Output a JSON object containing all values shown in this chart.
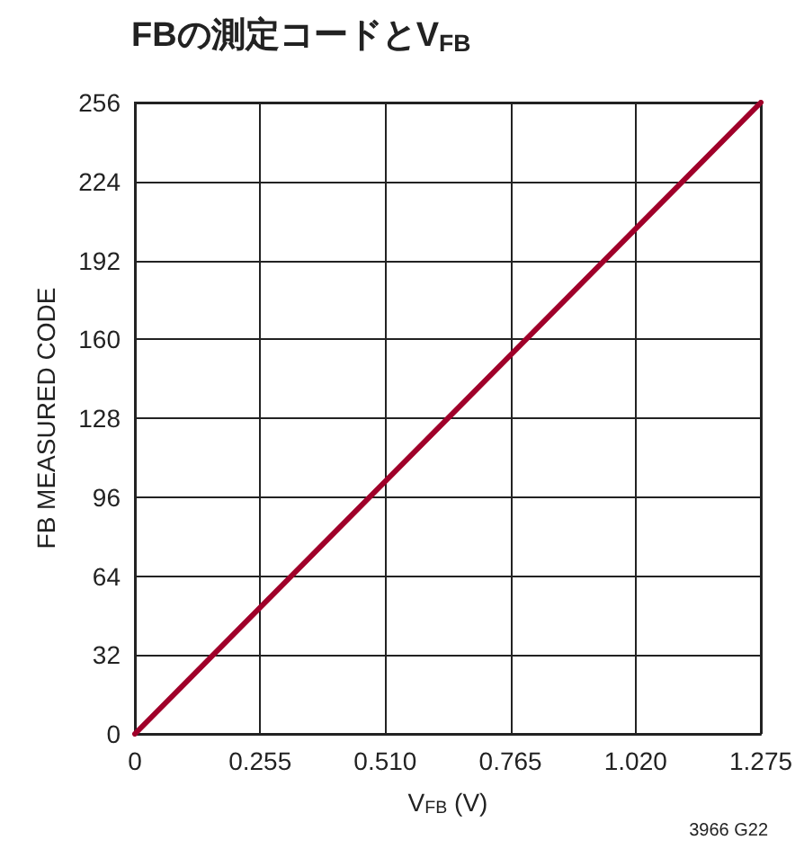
{
  "chart_data": {
    "type": "line",
    "title": "FBの測定コードとV$_{FB}$",
    "xlabel": "V$_{FB}$ (V)",
    "ylabel": "FB MEASURED CODE",
    "annotations": [
      "3966 G22"
    ],
    "x": [
      0,
      1.275
    ],
    "series": [
      {
        "color": "#a0002a",
        "values": [
          0,
          256
        ]
      }
    ],
    "xlim": [
      0,
      1.275
    ],
    "xticks": [
      0,
      0.255,
      {
        "value": 0.51,
        "label": "0.510"
      },
      0.765,
      {
        "value": 1.02,
        "label": "1.020"
      },
      1.275
    ],
    "ylim": [
      0,
      256
    ],
    "yticks": [
      0,
      32,
      64,
      96,
      128,
      160,
      192,
      224,
      256
    ],
    "grid": true,
    "marker": "none",
    "line_style": "solid"
  }
}
